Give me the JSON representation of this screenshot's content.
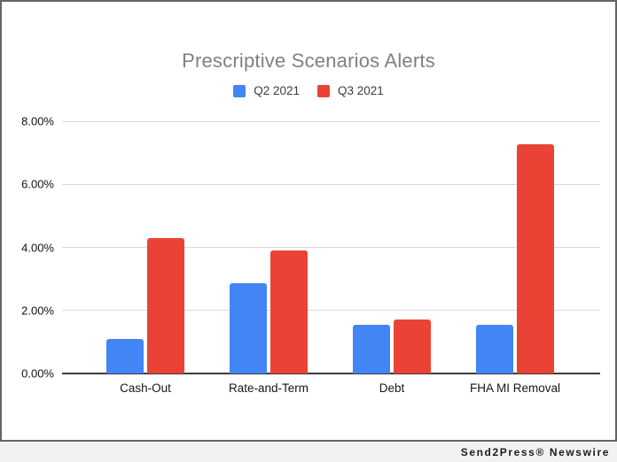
{
  "chart_data": {
    "type": "bar",
    "title": "Prescriptive Scenarios Alerts",
    "categories": [
      "Cash-Out",
      "Rate-and-Term",
      "Debt",
      "FHA MI Removal"
    ],
    "series": [
      {
        "name": "Q2 2021",
        "color": "#4285F4",
        "values": [
          1.1,
          2.85,
          1.55,
          1.55
        ]
      },
      {
        "name": "Q3 2021",
        "color": "#EA4335",
        "values": [
          4.3,
          3.9,
          1.7,
          7.27
        ]
      }
    ],
    "xlabel": "",
    "ylabel": "",
    "ylim": [
      0,
      8
    ],
    "y_ticks": [
      "8.00%",
      "6.00%",
      "4.00%",
      "2.00%",
      "0.00%"
    ],
    "grid": true,
    "legend_position": "top",
    "value_format": "percent"
  },
  "colors": {
    "title_text": "#808080",
    "axis_text": "#111111",
    "gridline": "#d9d9d9",
    "baseline": "#3b3b3b",
    "frame_border": "#646464",
    "footer_background": "#f2f2f2",
    "footer_text": "#1c1c1c"
  },
  "footer": {
    "credit": "Send2Press® Newswire"
  }
}
